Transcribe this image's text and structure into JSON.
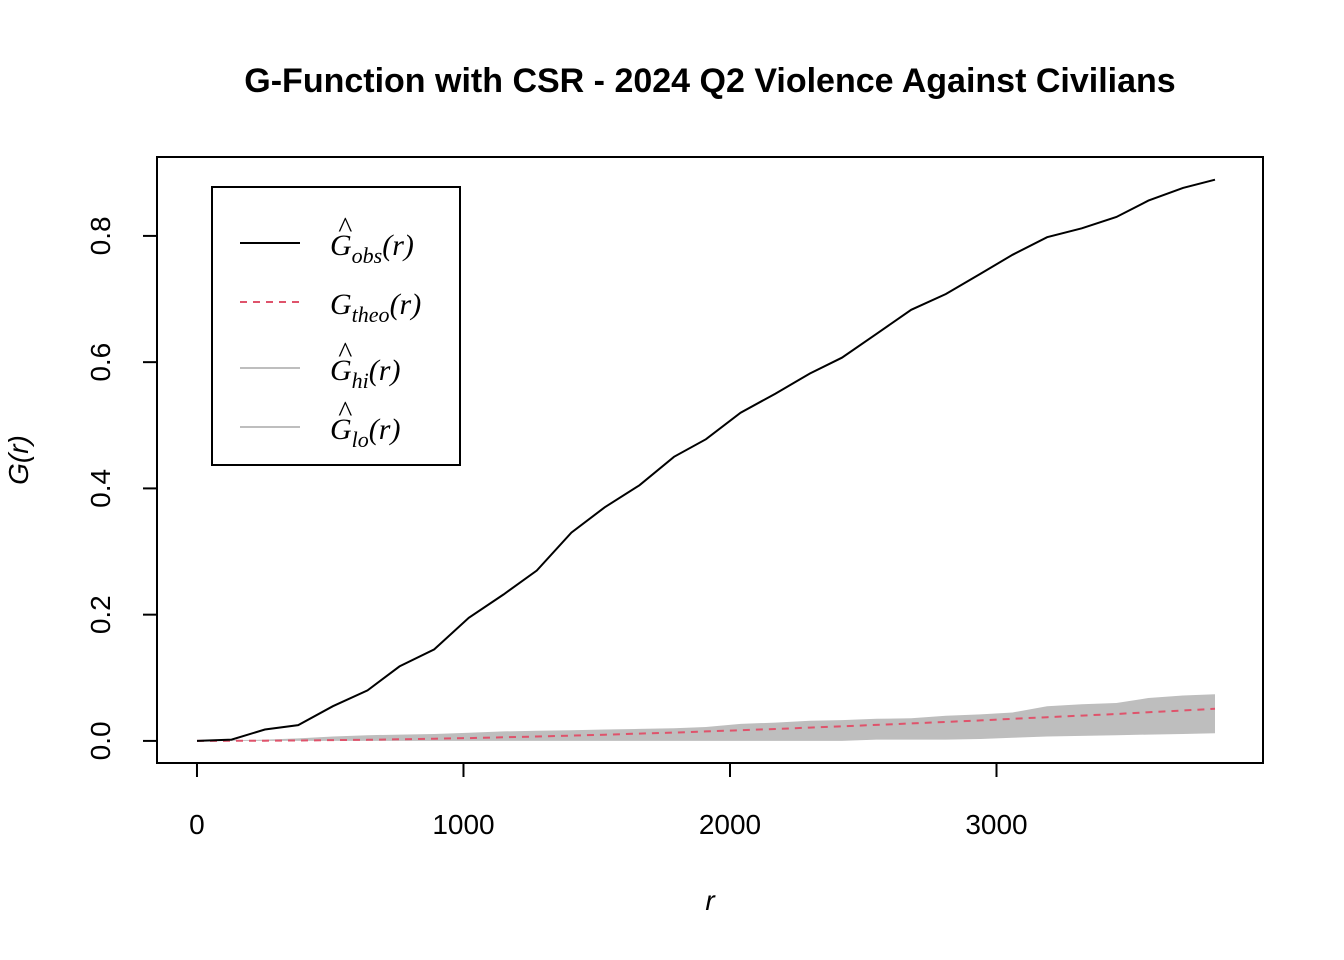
{
  "chart_data": {
    "type": "line",
    "title": "G-Function with CSR - 2024 Q2 Violence Against Civilians",
    "xlabel": "r",
    "ylabel": "G(r)",
    "xlim": [
      -150,
      4000
    ],
    "ylim": [
      -0.035,
      0.925
    ],
    "xticks": [
      0,
      1000,
      2000,
      3000
    ],
    "xtick_labels": [
      "0",
      "1000",
      "2000",
      "3000"
    ],
    "yticks": [
      0.0,
      0.2,
      0.4,
      0.6,
      0.8
    ],
    "ytick_labels": [
      "0.0",
      "0.2",
      "0.4",
      "0.6",
      "0.8"
    ],
    "legend_position": "top-left",
    "legend": [
      {
        "key": "obs",
        "hat": "^",
        "base": "G",
        "sub": "obs",
        "tail": "(r)",
        "color": "#000000",
        "style": "solid"
      },
      {
        "key": "theo",
        "hat": "",
        "base": "G",
        "sub": "theo",
        "tail": "(r)",
        "color": "#DF536B",
        "style": "dashed"
      },
      {
        "key": "hi",
        "hat": "^",
        "base": "G",
        "sub": "hi",
        "tail": "(r)",
        "color": "#BEBEBE",
        "style": "solid"
      },
      {
        "key": "lo",
        "hat": "^",
        "base": "G",
        "sub": "lo",
        "tail": "(r)",
        "color": "#BEBEBE",
        "style": "solid"
      }
    ],
    "x": [
      0,
      130,
      255,
      380,
      510,
      640,
      760,
      890,
      1020,
      1150,
      1275,
      1405,
      1530,
      1660,
      1790,
      1910,
      2040,
      2170,
      2300,
      2420,
      2550,
      2680,
      2810,
      2940,
      3060,
      3190,
      3320,
      3450,
      3570,
      3700,
      3820
    ],
    "series": [
      {
        "name": "obs",
        "color": "#000000",
        "style": "solid",
        "values": [
          0.0,
          0.002,
          0.018,
          0.025,
          0.055,
          0.08,
          0.118,
          0.145,
          0.195,
          0.232,
          0.27,
          0.33,
          0.37,
          0.405,
          0.45,
          0.478,
          0.52,
          0.55,
          0.582,
          0.607,
          0.645,
          0.683,
          0.708,
          0.74,
          0.77,
          0.798,
          0.812,
          0.83,
          0.856,
          0.876,
          0.889
        ]
      },
      {
        "name": "theo",
        "color": "#DF536B",
        "style": "dashed",
        "values": [
          0.0,
          0.0001,
          0.0003,
          0.0007,
          0.0012,
          0.0018,
          0.0026,
          0.0035,
          0.0045,
          0.0057,
          0.007,
          0.0084,
          0.0099,
          0.0115,
          0.0132,
          0.015,
          0.0169,
          0.0189,
          0.021,
          0.0232,
          0.0254,
          0.0277,
          0.0301,
          0.0325,
          0.035,
          0.0375,
          0.0401,
          0.0427,
          0.0454,
          0.0481,
          0.0508
        ]
      },
      {
        "name": "hi",
        "color": "#BEBEBE",
        "style": "band-upper",
        "values": [
          0.0,
          0.001,
          0.002,
          0.004,
          0.007,
          0.009,
          0.01,
          0.011,
          0.013,
          0.015,
          0.016,
          0.017,
          0.018,
          0.019,
          0.02,
          0.022,
          0.027,
          0.029,
          0.032,
          0.033,
          0.035,
          0.036,
          0.04,
          0.042,
          0.045,
          0.055,
          0.058,
          0.06,
          0.068,
          0.072,
          0.074
        ]
      },
      {
        "name": "lo",
        "color": "#BEBEBE",
        "style": "band-lower",
        "values": [
          0.0,
          0.0,
          0.0,
          0.0,
          0.0,
          0.0,
          0.0,
          0.0,
          0.0,
          0.0,
          0.0,
          0.0,
          0.0,
          0.0,
          0.0,
          0.0,
          0.0,
          0.0,
          0.0,
          0.0,
          0.002,
          0.002,
          0.002,
          0.003,
          0.005,
          0.007,
          0.008,
          0.009,
          0.01,
          0.011,
          0.012
        ]
      }
    ]
  }
}
